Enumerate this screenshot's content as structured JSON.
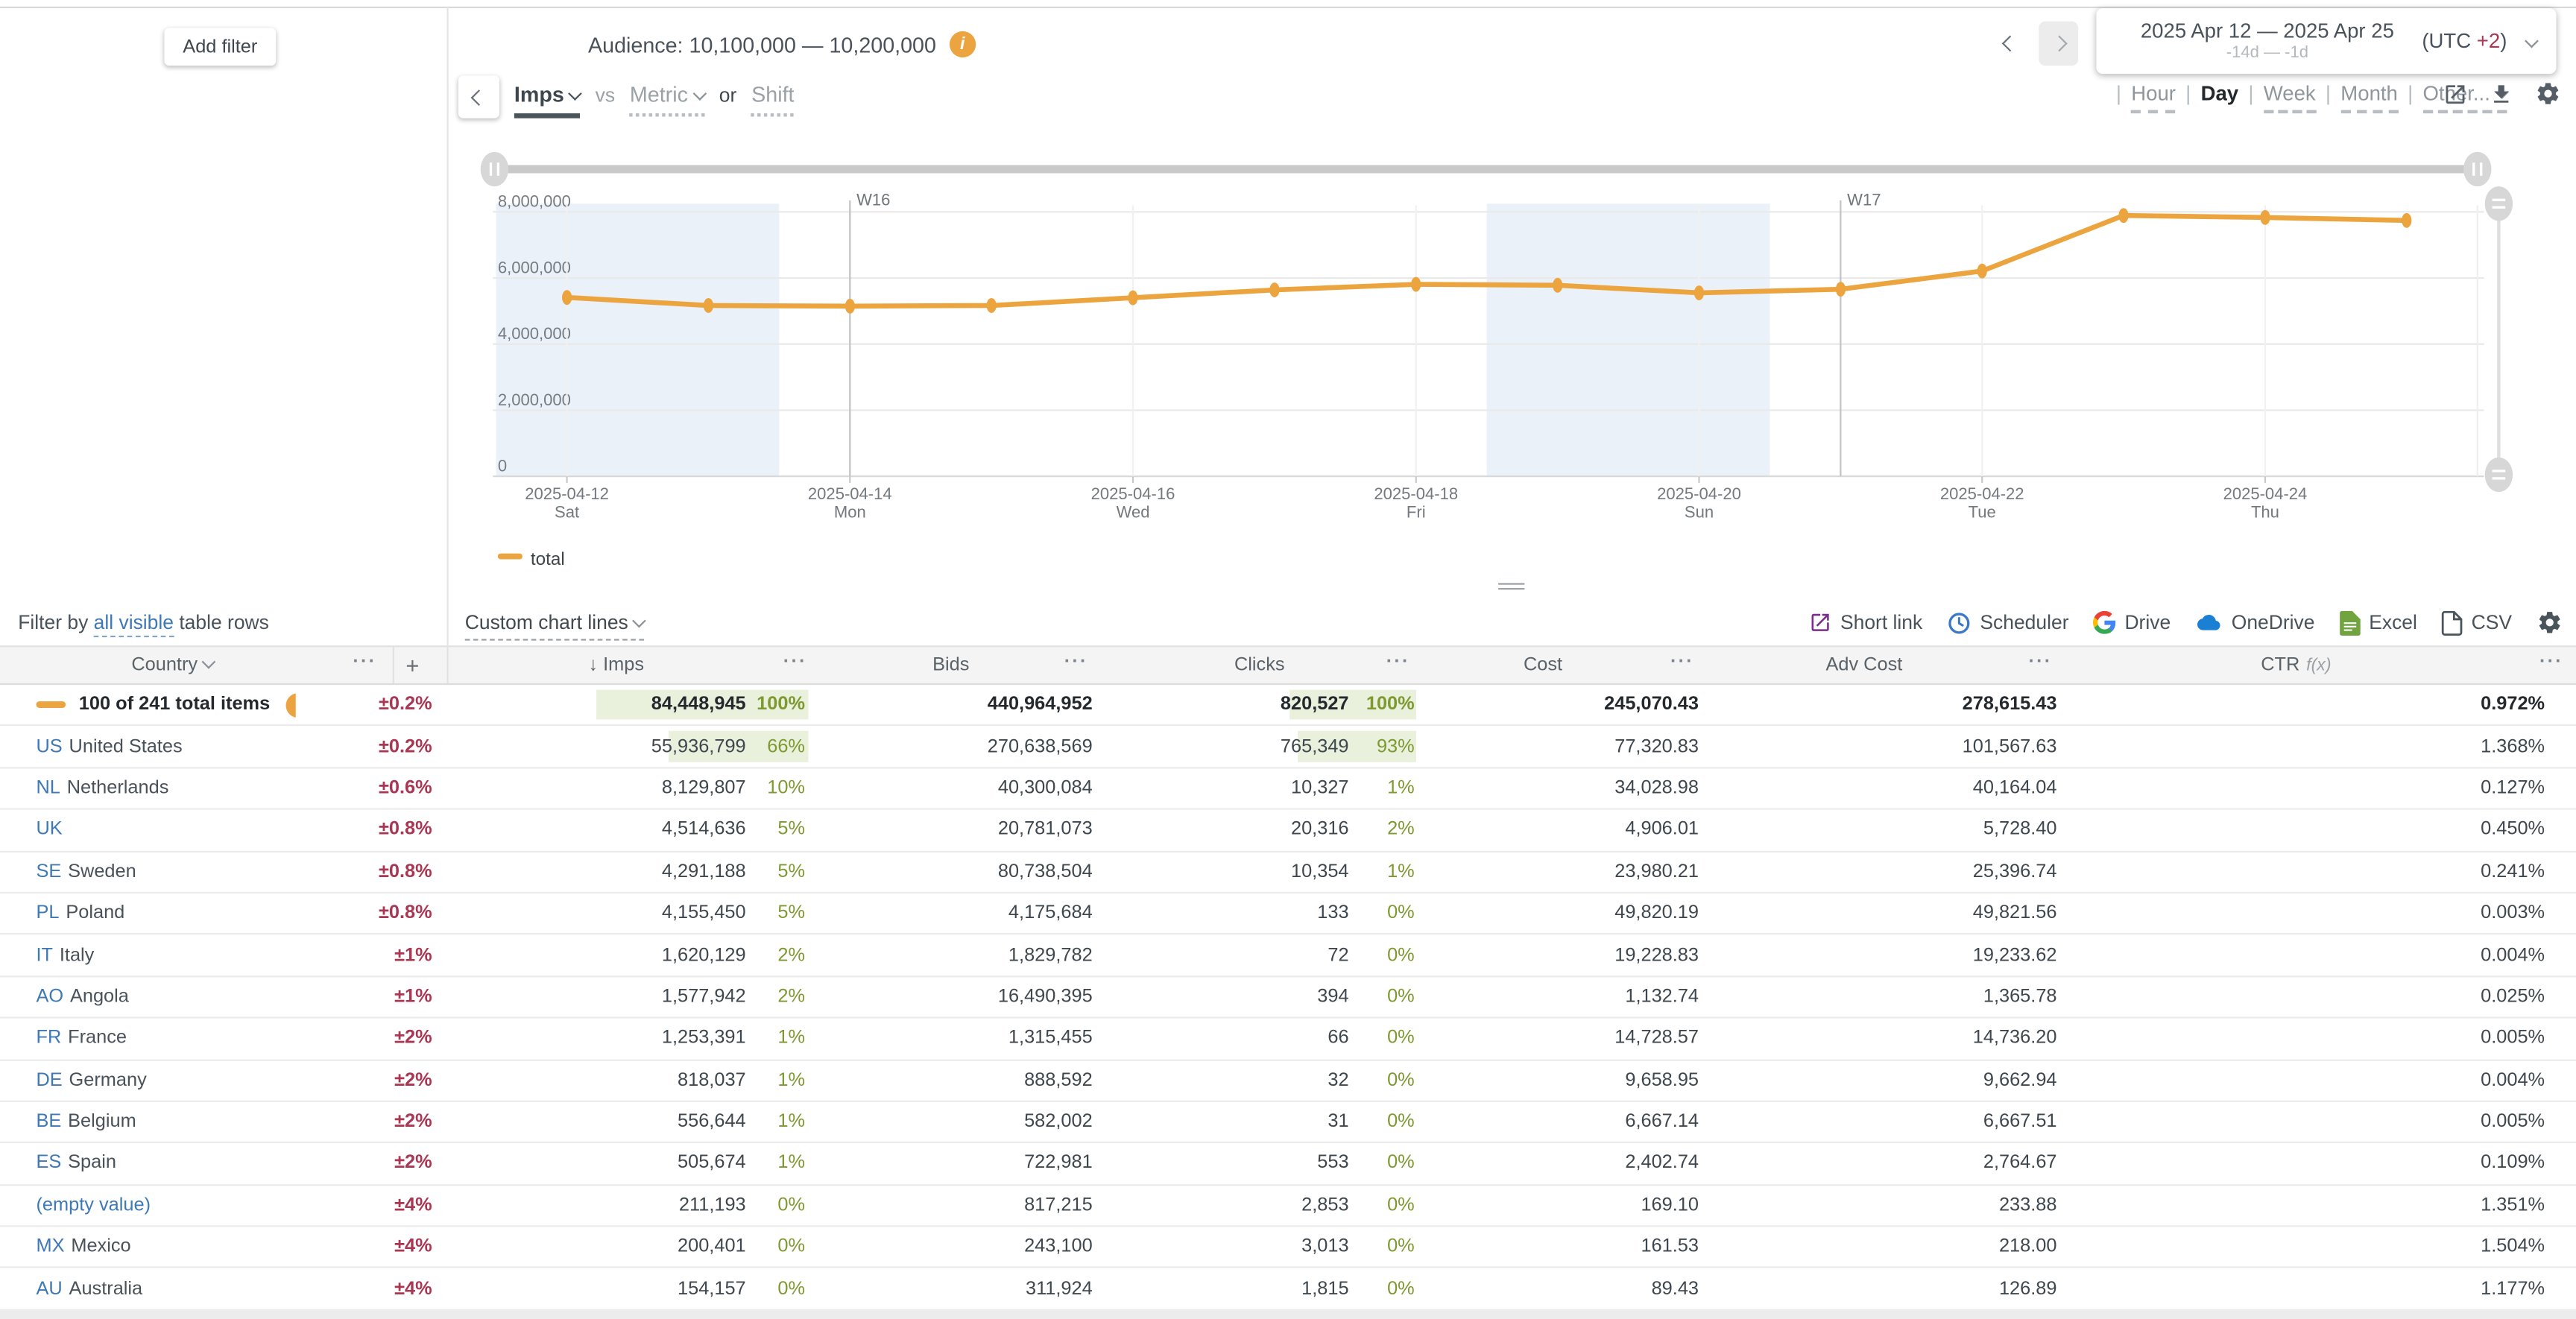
{
  "colors": {
    "accent_orange": "#EBA43E",
    "negative_red": "#A93652",
    "percent_green": "#7D9930",
    "bar_highlight": "#E9F0DC",
    "link_blue": "#3E79B5",
    "weekend_band": "#EAF1F8"
  },
  "left_panel": {
    "add_filter": "Add filter"
  },
  "header": {
    "audience_label": "Audience:",
    "audience_value": "10,100,000 — 10,200,000",
    "metric_picker": {
      "primary": "Imps",
      "vs": "vs",
      "secondary": "Metric",
      "or": "or",
      "shift": "Shift"
    },
    "date_picker": {
      "range": "2025 Apr 12 — 2025 Apr 25",
      "relative": "-14d — -1d",
      "utc_prefix": "(UTC ",
      "utc_offset": "+2",
      "utc_suffix": ")"
    },
    "granularity": {
      "options": [
        {
          "label": "Hour"
        },
        {
          "label": "Day",
          "cls": "sel",
          "selected": true
        },
        {
          "label": "Week"
        },
        {
          "label": "Month"
        },
        {
          "label": "Other...",
          "chevron": true
        }
      ]
    }
  },
  "chart_data": {
    "type": "line",
    "title": "",
    "x": [
      "2025-04-12",
      "2025-04-13",
      "2025-04-14",
      "2025-04-15",
      "2025-04-16",
      "2025-04-17",
      "2025-04-18",
      "2025-04-19",
      "2025-04-20",
      "2025-04-21",
      "2025-04-22",
      "2025-04-23",
      "2025-04-24",
      "2025-04-25"
    ],
    "series": [
      {
        "name": "total",
        "color": "#EBA43E",
        "values": [
          5410000,
          5170000,
          5150000,
          5170000,
          5400000,
          5640000,
          5810000,
          5780000,
          5550000,
          5660000,
          6210000,
          7890000,
          7830000,
          7740000
        ]
      }
    ],
    "ylim": [
      0,
      8000000
    ],
    "yticks": [
      0,
      2000000,
      4000000,
      6000000,
      8000000
    ],
    "x_ticks": [
      {
        "i": 0,
        "date": "2025-04-12",
        "dow": "Sat"
      },
      {
        "i": 2,
        "date": "2025-04-14",
        "dow": "Mon"
      },
      {
        "i": 4,
        "date": "2025-04-16",
        "dow": "Wed"
      },
      {
        "i": 6,
        "date": "2025-04-18",
        "dow": "Fri"
      },
      {
        "i": 8,
        "date": "2025-04-20",
        "dow": "Sun"
      },
      {
        "i": 10,
        "date": "2025-04-22",
        "dow": "Tue"
      },
      {
        "i": 12,
        "date": "2025-04-24",
        "dow": "Thu"
      }
    ],
    "weekend_bands": [
      {
        "from": "2025-04-12",
        "to": "2025-04-13"
      },
      {
        "from": "2025-04-19",
        "to": "2025-04-20"
      }
    ],
    "week_markers": [
      {
        "label": "W16",
        "date": "2025-04-14"
      },
      {
        "label": "W17",
        "date": "2025-04-21"
      }
    ],
    "legend": [
      "total"
    ],
    "grid": true,
    "legend_position": "bottom-left"
  },
  "filter_row": {
    "prefix": "Filter by ",
    "link": "all visible",
    "suffix": " table rows",
    "custom_lines": "Custom chart lines"
  },
  "toolbar": {
    "short_link": "Short link",
    "scheduler": "Scheduler",
    "drive": "Drive",
    "onedrive": "OneDrive",
    "excel": "Excel",
    "csv": "CSV"
  },
  "table": {
    "headers": {
      "country": "Country",
      "sort_arrow": "↓",
      "imps": "Imps",
      "bids": "Bids",
      "clicks": "Clicks",
      "cost": "Cost",
      "adv_cost": "Adv Cost",
      "ctr": "CTR",
      "fx": "f(x)",
      "more": "···",
      "add": "+"
    },
    "rows": [
      {
        "cls": "row-total",
        "is_total": true,
        "code": "",
        "name": "100 of 241 total items",
        "tol": "±0.2%",
        "imps": "84,448,945",
        "imps_pct": "100%",
        "imps_bar": 100,
        "bids": "440,964,952",
        "clicks": "820,527",
        "clicks_pct": "100%",
        "clicks_bar": 100,
        "cost": "245,070.43",
        "adv": "278,615.43",
        "ctr": "0.972%"
      },
      {
        "code": "US",
        "name": "United States",
        "tol": "±0.2%",
        "imps": "55,936,799",
        "imps_pct": "66%",
        "imps_bar": 66,
        "bids": "270,638,569",
        "clicks": "765,349",
        "clicks_pct": "93%",
        "clicks_bar": 93,
        "cost": "77,320.83",
        "adv": "101,567.63",
        "ctr": "1.368%"
      },
      {
        "code": "NL",
        "name": "Netherlands",
        "tol": "±0.6%",
        "imps": "8,129,807",
        "imps_pct": "10%",
        "bids": "40,300,084",
        "clicks": "10,327",
        "clicks_pct": "1%",
        "cost": "34,028.98",
        "adv": "40,164.04",
        "ctr": "0.127%"
      },
      {
        "code": "UK",
        "name": "",
        "tol": "±0.8%",
        "imps": "4,514,636",
        "imps_pct": "5%",
        "bids": "20,781,073",
        "clicks": "20,316",
        "clicks_pct": "2%",
        "cost": "4,906.01",
        "adv": "5,728.40",
        "ctr": "0.450%"
      },
      {
        "code": "SE",
        "name": "Sweden",
        "tol": "±0.8%",
        "imps": "4,291,188",
        "imps_pct": "5%",
        "bids": "80,738,504",
        "clicks": "10,354",
        "clicks_pct": "1%",
        "cost": "23,980.21",
        "adv": "25,396.74",
        "ctr": "0.241%"
      },
      {
        "code": "PL",
        "name": "Poland",
        "tol": "±0.8%",
        "imps": "4,155,450",
        "imps_pct": "5%",
        "bids": "4,175,684",
        "clicks": "133",
        "clicks_pct": "0%",
        "cost": "49,820.19",
        "adv": "49,821.56",
        "ctr": "0.003%"
      },
      {
        "code": "IT",
        "name": "Italy",
        "tol": "±1%",
        "imps": "1,620,129",
        "imps_pct": "2%",
        "bids": "1,829,782",
        "clicks": "72",
        "clicks_pct": "0%",
        "cost": "19,228.83",
        "adv": "19,233.62",
        "ctr": "0.004%"
      },
      {
        "code": "AO",
        "name": "Angola",
        "tol": "±1%",
        "imps": "1,577,942",
        "imps_pct": "2%",
        "bids": "16,490,395",
        "clicks": "394",
        "clicks_pct": "0%",
        "cost": "1,132.74",
        "adv": "1,365.78",
        "ctr": "0.025%"
      },
      {
        "code": "FR",
        "name": "France",
        "tol": "±2%",
        "imps": "1,253,391",
        "imps_pct": "1%",
        "bids": "1,315,455",
        "clicks": "66",
        "clicks_pct": "0%",
        "cost": "14,728.57",
        "adv": "14,736.20",
        "ctr": "0.005%"
      },
      {
        "code": "DE",
        "name": "Germany",
        "tol": "±2%",
        "imps": "818,037",
        "imps_pct": "1%",
        "bids": "888,592",
        "clicks": "32",
        "clicks_pct": "0%",
        "cost": "9,658.95",
        "adv": "9,662.94",
        "ctr": "0.004%"
      },
      {
        "code": "BE",
        "name": "Belgium",
        "tol": "±2%",
        "imps": "556,644",
        "imps_pct": "1%",
        "bids": "582,002",
        "clicks": "31",
        "clicks_pct": "0%",
        "cost": "6,667.14",
        "adv": "6,667.51",
        "ctr": "0.005%"
      },
      {
        "code": "ES",
        "name": "Spain",
        "tol": "±2%",
        "imps": "505,674",
        "imps_pct": "1%",
        "bids": "722,981",
        "clicks": "553",
        "clicks_pct": "0%",
        "cost": "2,402.74",
        "adv": "2,764.67",
        "ctr": "0.109%"
      },
      {
        "cls": "row-empty",
        "code": "",
        "name": "(empty value)",
        "tol": "±4%",
        "imps": "211,193",
        "imps_pct": "0%",
        "bids": "817,215",
        "clicks": "2,853",
        "clicks_pct": "0%",
        "cost": "169.10",
        "adv": "233.88",
        "ctr": "1.351%"
      },
      {
        "code": "MX",
        "name": "Mexico",
        "tol": "±4%",
        "imps": "200,401",
        "imps_pct": "0%",
        "bids": "243,100",
        "clicks": "3,013",
        "clicks_pct": "0%",
        "cost": "161.53",
        "adv": "218.00",
        "ctr": "1.504%"
      },
      {
        "code": "AU",
        "name": "Australia",
        "tol": "±4%",
        "imps": "154,157",
        "imps_pct": "0%",
        "bids": "311,924",
        "clicks": "1,815",
        "clicks_pct": "0%",
        "cost": "89.43",
        "adv": "126.89",
        "ctr": "1.177%"
      }
    ]
  }
}
